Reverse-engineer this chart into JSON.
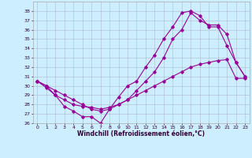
{
  "xlabel": "Windchill (Refroidissement éolien,°C)",
  "bg_color": "#cceeff",
  "line_color": "#990099",
  "grid_color": "#aabbcc",
  "xlim": [
    -0.5,
    23.5
  ],
  "ylim": [
    26,
    39
  ],
  "yticks": [
    26,
    27,
    28,
    29,
    30,
    31,
    32,
    33,
    34,
    35,
    36,
    37,
    38
  ],
  "xticks": [
    0,
    1,
    2,
    3,
    4,
    5,
    6,
    7,
    8,
    9,
    10,
    11,
    12,
    13,
    14,
    15,
    16,
    17,
    18,
    19,
    20,
    21,
    22,
    23
  ],
  "line1_x": [
    0,
    1,
    2,
    3,
    4,
    5,
    6,
    7,
    8,
    9,
    10,
    11,
    12,
    13,
    14,
    15,
    16,
    17,
    18,
    19,
    20,
    21,
    22,
    23
  ],
  "line1_y": [
    30.5,
    30.0,
    29.0,
    27.8,
    27.3,
    26.7,
    26.7,
    26.0,
    27.5,
    28.8,
    30.0,
    30.5,
    32.0,
    33.3,
    35.0,
    36.3,
    37.8,
    38.0,
    37.5,
    36.3,
    36.3,
    34.3,
    32.5,
    31.0
  ],
  "line2_x": [
    0,
    1,
    2,
    3,
    4,
    5,
    6,
    7,
    8,
    9,
    10,
    11,
    12,
    13,
    14,
    15,
    16,
    17,
    18,
    19,
    20,
    21,
    22,
    23
  ],
  "line2_y": [
    30.5,
    29.8,
    29.0,
    28.5,
    28.0,
    27.8,
    27.7,
    27.5,
    27.7,
    28.0,
    28.5,
    29.0,
    29.5,
    30.0,
    30.5,
    31.0,
    31.5,
    32.0,
    32.3,
    32.5,
    32.7,
    32.8,
    30.8,
    30.8
  ],
  "line3_x": [
    0,
    1,
    2,
    3,
    4,
    5,
    6,
    7,
    8,
    9,
    10,
    11,
    12,
    13,
    14,
    15,
    16,
    17,
    18,
    19,
    20,
    21,
    22,
    23
  ],
  "line3_y": [
    30.5,
    30.0,
    29.5,
    29.0,
    28.5,
    28.0,
    27.5,
    27.3,
    27.5,
    28.0,
    28.5,
    29.5,
    30.5,
    31.5,
    33.0,
    35.0,
    36.0,
    37.8,
    37.0,
    36.5,
    36.5,
    35.5,
    32.5,
    31.0
  ]
}
